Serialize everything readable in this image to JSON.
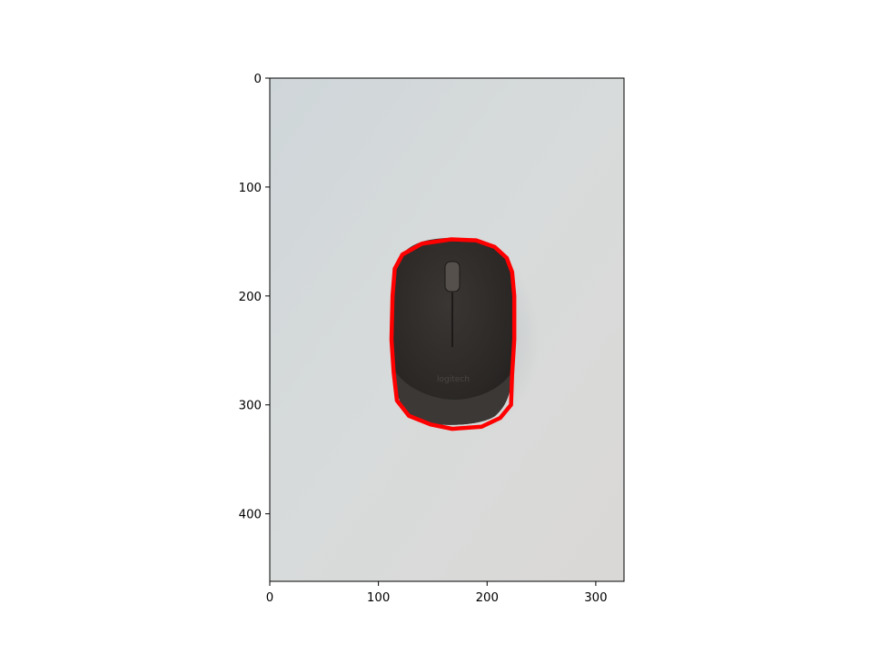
{
  "image": {
    "description_tags": [
      "computer-mouse-photo",
      "red-contour-overlay"
    ],
    "contour_color": "#ff0000",
    "background_color": "#d7d9d8",
    "mouse_color": "#2d2a28"
  },
  "axes": {
    "x_ticks": [
      0,
      100,
      200,
      300
    ],
    "y_ticks": [
      0,
      100,
      200,
      300,
      400
    ],
    "x_range": [
      0,
      326
    ],
    "y_range": [
      0,
      462
    ],
    "y_inverted": true
  },
  "contour": {
    "points_data_units": [
      [
        167,
        148
      ],
      [
        190,
        149
      ],
      [
        207,
        155
      ],
      [
        218,
        165
      ],
      [
        223,
        178
      ],
      [
        225,
        200
      ],
      [
        225,
        240
      ],
      [
        223,
        272
      ],
      [
        222,
        300
      ],
      [
        212,
        312
      ],
      [
        195,
        320
      ],
      [
        168,
        322
      ],
      [
        148,
        318
      ],
      [
        128,
        310
      ],
      [
        117,
        296
      ],
      [
        114,
        270
      ],
      [
        112,
        240
      ],
      [
        113,
        200
      ],
      [
        115,
        175
      ],
      [
        122,
        162
      ],
      [
        140,
        152
      ]
    ]
  }
}
